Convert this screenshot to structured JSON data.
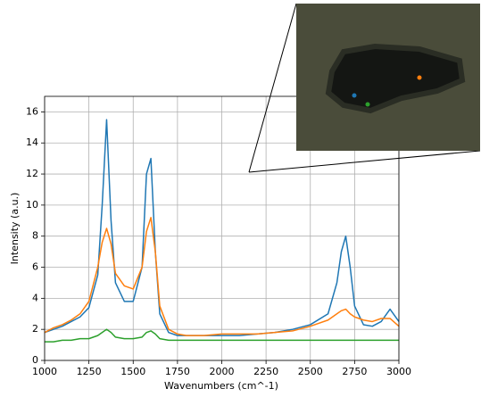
{
  "chart_data": {
    "type": "line",
    "xlabel": "Wavenumbers (cm^-1)",
    "ylabel": "Intensity (a.u.)",
    "x": [
      1000,
      1050,
      1100,
      1150,
      1200,
      1250,
      1300,
      1325,
      1350,
      1375,
      1400,
      1450,
      1500,
      1550,
      1575,
      1600,
      1625,
      1650,
      1700,
      1750,
      1800,
      1900,
      2000,
      2100,
      2200,
      2300,
      2400,
      2500,
      2600,
      2650,
      2675,
      2700,
      2725,
      2750,
      2800,
      2850,
      2900,
      2950,
      3000
    ],
    "series": [
      {
        "color": "#1f77b4",
        "values": [
          1.8,
          2.0,
          2.2,
          2.5,
          2.8,
          3.4,
          5.5,
          10,
          15.5,
          9,
          5,
          3.8,
          3.8,
          6,
          12,
          13,
          7,
          3,
          1.8,
          1.6,
          1.6,
          1.6,
          1.6,
          1.6,
          1.7,
          1.8,
          2.0,
          2.3,
          3.0,
          5.0,
          7.0,
          8.0,
          6.0,
          3.5,
          2.3,
          2.2,
          2.5,
          3.3,
          2.5
        ]
      },
      {
        "color": "#ff7f0e",
        "values": [
          1.8,
          2.1,
          2.3,
          2.6,
          3.0,
          3.8,
          6.0,
          7.6,
          8.5,
          7.5,
          5.6,
          4.8,
          4.6,
          6.0,
          8.3,
          9.2,
          7.0,
          3.5,
          2.0,
          1.7,
          1.6,
          1.6,
          1.7,
          1.7,
          1.7,
          1.8,
          1.9,
          2.2,
          2.6,
          3.0,
          3.2,
          3.3,
          3.0,
          2.8,
          2.6,
          2.5,
          2.7,
          2.7,
          2.2
        ]
      },
      {
        "color": "#2ca02c",
        "values": [
          1.2,
          1.2,
          1.3,
          1.3,
          1.4,
          1.4,
          1.6,
          1.8,
          2.0,
          1.8,
          1.5,
          1.4,
          1.4,
          1.5,
          1.8,
          1.9,
          1.7,
          1.4,
          1.3,
          1.3,
          1.3,
          1.3,
          1.3,
          1.3,
          1.3,
          1.3,
          1.3,
          1.3,
          1.3,
          1.3,
          1.3,
          1.3,
          1.3,
          1.3,
          1.3,
          1.3,
          1.3,
          1.3,
          1.3
        ]
      }
    ],
    "xlim": [
      1000,
      3000
    ],
    "xticks": [
      1000,
      1250,
      1500,
      1750,
      2000,
      2250,
      2500,
      2750,
      3000
    ],
    "ylim": [
      0,
      17
    ],
    "yticks": [
      0,
      2,
      4,
      6,
      8,
      10,
      12,
      14,
      16
    ],
    "grid": true
  }
}
